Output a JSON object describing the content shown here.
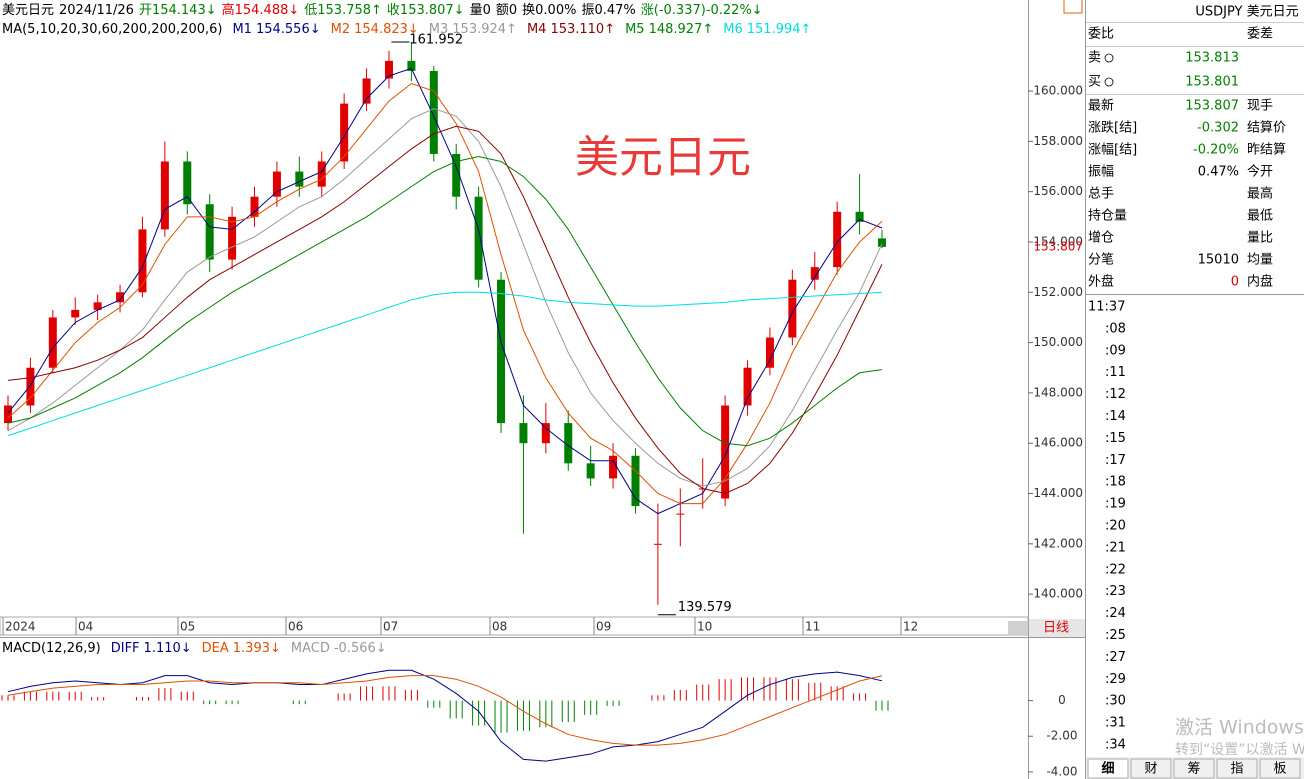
{
  "header": {
    "items": [
      {
        "text": "美元日元",
        "color": "#000000"
      },
      {
        "text": "2024/11/26",
        "color": "#000000"
      },
      {
        "text": "开154.143↓",
        "color": "#008000"
      },
      {
        "text": "高154.488↓",
        "color": "#e00000"
      },
      {
        "text": "低153.758↑",
        "color": "#008000"
      },
      {
        "text": "收153.807↓",
        "color": "#008000"
      },
      {
        "text": "量0",
        "color": "#000000"
      },
      {
        "text": "额0",
        "color": "#000000"
      },
      {
        "text": "换0.00%",
        "color": "#000000"
      },
      {
        "text": "振0.47%",
        "color": "#000000"
      },
      {
        "text": "涨(-0.337)-0.22%↓",
        "color": "#008000"
      }
    ]
  },
  "watermark_title": "美元日元",
  "chart_data": [
    {
      "type": "candlestick",
      "legend_title": "MA(5,10,20,30,60,200,200,200,6)",
      "up_color": "#e00000",
      "down_color": "#008000",
      "x_labels": [
        "2024",
        "04",
        "05",
        "06",
        "07",
        "08",
        "09",
        "10",
        "11",
        "12"
      ],
      "period_label": "日线",
      "open": [
        146.8,
        147.5,
        149.0,
        151.0,
        151.3,
        151.6,
        152.0,
        154.5,
        157.2,
        155.5,
        153.3,
        155.0,
        155.8,
        156.8,
        156.2,
        157.2,
        159.5,
        160.5,
        161.2,
        160.8,
        157.5,
        155.8,
        152.5,
        146.8,
        146.0,
        146.8,
        145.2,
        144.6,
        145.5,
        142.0,
        143.2,
        144.2,
        143.8,
        147.5,
        149.0,
        150.2,
        152.5,
        153.0,
        155.2,
        154.143
      ],
      "high": [
        147.9,
        149.4,
        151.3,
        151.8,
        151.9,
        152.3,
        155.0,
        158.0,
        157.6,
        155.9,
        155.4,
        156.2,
        157.2,
        157.4,
        157.6,
        159.9,
        160.9,
        161.6,
        161.952,
        161.0,
        157.9,
        156.2,
        152.8,
        147.9,
        147.6,
        147.3,
        145.9,
        146.0,
        145.8,
        143.6,
        144.2,
        145.4,
        147.9,
        149.3,
        150.6,
        152.9,
        153.6,
        155.6,
        156.7,
        154.488
      ],
      "low": [
        146.5,
        147.2,
        148.8,
        150.7,
        150.9,
        151.2,
        151.8,
        154.2,
        155.1,
        152.8,
        152.9,
        154.6,
        155.4,
        155.8,
        155.8,
        156.9,
        159.2,
        160.1,
        160.4,
        157.2,
        155.3,
        152.2,
        146.4,
        142.4,
        145.6,
        144.9,
        144.3,
        144.2,
        143.2,
        139.579,
        141.9,
        143.4,
        143.5,
        147.1,
        148.7,
        149.9,
        152.1,
        152.7,
        154.3,
        153.758
      ],
      "close": [
        147.5,
        149.0,
        151.0,
        151.3,
        151.6,
        152.0,
        154.5,
        157.2,
        155.5,
        153.3,
        155.0,
        155.8,
        156.8,
        156.2,
        157.2,
        159.5,
        160.5,
        161.2,
        160.8,
        157.5,
        155.8,
        152.5,
        146.8,
        146.0,
        146.8,
        145.2,
        144.6,
        145.5,
        143.5,
        142.0,
        143.2,
        144.2,
        147.5,
        149.0,
        150.2,
        152.5,
        153.0,
        155.2,
        154.8,
        153.807
      ],
      "ylim": [
        139.17,
        163.62
      ],
      "yticks": [
        {
          "value": 140,
          "label": "140.000"
        },
        {
          "value": 142,
          "label": "142.000"
        },
        {
          "value": 144,
          "label": "144.000"
        },
        {
          "value": 146,
          "label": "146.000"
        },
        {
          "value": 148,
          "label": "148.000"
        },
        {
          "value": 150,
          "label": "150.000"
        },
        {
          "value": 152,
          "label": "152.000"
        },
        {
          "value": 154,
          "label": "154.000"
        },
        {
          "value": 156,
          "label": "156.000"
        },
        {
          "value": 158,
          "label": "158.000"
        },
        {
          "value": 160,
          "label": "160.000"
        }
      ],
      "grid": false,
      "series": [
        {
          "name": "M1",
          "legend_value": "154.556↓",
          "color": "#00008b",
          "values": [
            147.2,
            148.3,
            149.8,
            150.8,
            151.3,
            151.7,
            153.0,
            155.3,
            155.8,
            154.6,
            154.5,
            155.2,
            156.0,
            156.4,
            156.8,
            158.2,
            159.7,
            160.6,
            160.9,
            159.0,
            157.0,
            154.5,
            150.0,
            147.5,
            146.6,
            145.9,
            145.3,
            145.3,
            143.8,
            143.2,
            143.6,
            144.0,
            145.5,
            147.8,
            149.3,
            151.2,
            152.6,
            154.0,
            154.9,
            154.556
          ]
        },
        {
          "name": "M2",
          "legend_value": "154.823↓",
          "color": "#e05000",
          "values": [
            147.0,
            147.8,
            148.9,
            150.0,
            150.8,
            151.4,
            152.3,
            153.9,
            155.0,
            155.0,
            154.8,
            155.0,
            155.6,
            156.1,
            156.5,
            157.4,
            158.5,
            159.6,
            160.3,
            160.0,
            158.7,
            156.8,
            153.5,
            150.5,
            148.6,
            147.2,
            146.2,
            145.7,
            144.9,
            144.0,
            143.6,
            143.6,
            144.6,
            146.0,
            147.6,
            149.6,
            151.2,
            152.8,
            154.0,
            154.823
          ]
        },
        {
          "name": "M3",
          "legend_value": "153.924↑",
          "color": "#999999",
          "values": [
            146.5,
            147.0,
            147.6,
            148.3,
            149.0,
            149.7,
            150.5,
            151.7,
            152.8,
            153.4,
            153.8,
            154.2,
            154.8,
            155.4,
            155.8,
            156.5,
            157.3,
            158.1,
            158.9,
            159.3,
            159.0,
            158.0,
            156.2,
            153.9,
            151.6,
            149.6,
            148.0,
            146.9,
            146.0,
            145.2,
            144.6,
            144.3,
            144.5,
            145.0,
            145.9,
            147.3,
            148.9,
            150.5,
            152.0,
            153.924
          ]
        },
        {
          "name": "M4",
          "legend_value": "153.110↑",
          "color": "#8b0000",
          "values": [
            148.5,
            148.6,
            148.8,
            149.0,
            149.3,
            149.7,
            150.2,
            151.0,
            151.8,
            152.5,
            153.0,
            153.5,
            154.0,
            154.5,
            155.0,
            155.6,
            156.3,
            157.0,
            157.7,
            158.3,
            158.6,
            158.4,
            157.5,
            155.8,
            153.8,
            151.8,
            150.0,
            148.4,
            147.0,
            145.8,
            144.8,
            144.2,
            144.0,
            144.4,
            145.2,
            146.4,
            147.9,
            149.5,
            151.3,
            153.11
          ]
        },
        {
          "name": "M5",
          "legend_value": "148.927↑",
          "color": "#008000",
          "values": [
            146.8,
            147.0,
            147.4,
            147.8,
            148.3,
            148.8,
            149.4,
            150.1,
            150.8,
            151.4,
            152.0,
            152.5,
            153.0,
            153.5,
            154.0,
            154.5,
            155.0,
            155.6,
            156.2,
            156.8,
            157.2,
            157.4,
            157.2,
            156.6,
            155.7,
            154.5,
            153.0,
            151.5,
            150.0,
            148.6,
            147.4,
            146.5,
            146.0,
            145.9,
            146.2,
            146.8,
            147.5,
            148.2,
            148.8,
            148.927
          ]
        },
        {
          "name": "M6",
          "legend_value": "151.994↑",
          "color": "#00dede",
          "values": [
            146.3,
            146.6,
            146.9,
            147.2,
            147.5,
            147.8,
            148.1,
            148.4,
            148.7,
            149.0,
            149.3,
            149.6,
            149.9,
            150.2,
            150.5,
            150.8,
            151.1,
            151.4,
            151.7,
            151.9,
            152.0,
            152.0,
            151.95,
            151.85,
            151.7,
            151.6,
            151.55,
            151.5,
            151.45,
            151.45,
            151.5,
            151.55,
            151.6,
            151.7,
            151.75,
            151.8,
            151.85,
            151.9,
            151.95,
            151.994
          ]
        }
      ]
    },
    {
      "type": "macd",
      "legend_title": "MACD(12,26,9)",
      "ylim": [
        -4.4,
        3.4
      ],
      "yticks": [
        0,
        {
          "value": -2,
          "label": "-2.00"
        },
        {
          "value": -4,
          "label": "-4.00"
        }
      ],
      "series": [
        {
          "name": "DIFF",
          "legend_value": "1.110↓",
          "color": "#00008b",
          "values": [
            0.5,
            0.8,
            1.0,
            1.1,
            1.0,
            0.9,
            1.0,
            1.4,
            1.4,
            1.0,
            0.9,
            1.0,
            1.0,
            0.9,
            0.9,
            1.2,
            1.5,
            1.7,
            1.7,
            1.2,
            0.4,
            -0.6,
            -2.3,
            -3.3,
            -3.4,
            -3.2,
            -3.0,
            -2.6,
            -2.5,
            -2.3,
            -1.9,
            -1.5,
            -0.6,
            0.3,
            0.9,
            1.3,
            1.5,
            1.6,
            1.4,
            1.11
          ]
        },
        {
          "name": "DEA",
          "legend_value": "1.393↓",
          "color": "#e05000",
          "values": [
            0.3,
            0.5,
            0.7,
            0.8,
            0.9,
            0.9,
            0.9,
            1.0,
            1.1,
            1.1,
            1.0,
            1.0,
            1.0,
            1.0,
            0.9,
            1.0,
            1.1,
            1.3,
            1.4,
            1.4,
            1.2,
            0.8,
            0.2,
            -0.6,
            -1.3,
            -1.9,
            -2.2,
            -2.4,
            -2.5,
            -2.5,
            -2.4,
            -2.2,
            -1.9,
            -1.4,
            -0.9,
            -0.4,
            0.1,
            0.6,
            1.1,
            1.393
          ]
        },
        {
          "name": "MACD",
          "legend_value": "-0.566↓",
          "color": "#999999",
          "values": [
            0.3,
            0.5,
            0.5,
            0.5,
            0.2,
            0,
            0.2,
            0.7,
            0.5,
            -0.2,
            -0.2,
            0,
            0,
            -0.2,
            0,
            0.4,
            0.8,
            0.8,
            0.6,
            -0.4,
            -1.0,
            -1.4,
            -1.8,
            -1.7,
            -1.5,
            -1.2,
            -0.8,
            -0.3,
            0,
            0.3,
            0.6,
            0.9,
            1.2,
            1.3,
            1.3,
            1.2,
            1.0,
            0.8,
            0.4,
            -0.566
          ]
        }
      ]
    }
  ],
  "quote": {
    "title": "USDJPY 美元日元",
    "top": [
      "委比",
      "委差"
    ],
    "sell": {
      "label": "卖",
      "value": "153.813"
    },
    "buy": {
      "label": "买",
      "value": "153.801"
    },
    "rows": [
      {
        "label": "最新",
        "value": "153.807",
        "color": "#008000",
        "label2": "现手"
      },
      {
        "label": "涨跌[结]",
        "value": "-0.302",
        "color": "#008000",
        "label2": "结算价"
      },
      {
        "label": "涨幅[结]",
        "value": "-0.20%",
        "color": "#008000",
        "label2": "昨结算"
      },
      {
        "label": "振幅",
        "value": "0.47%",
        "color": "#000000",
        "label2": "今开"
      },
      {
        "label": "总手",
        "label2": "最高"
      },
      {
        "label": "持仓量",
        "label2": "最低"
      },
      {
        "label": "增仓",
        "label2": "量比"
      },
      {
        "label": "分笔",
        "value": "15010",
        "color": "#000000",
        "label2": "均量"
      },
      {
        "label": "外盘",
        "value": "0",
        "color": "#e00000",
        "label2": "内盘"
      }
    ],
    "ticks": [
      "11:37",
      ":08",
      ":09",
      ":11",
      ":12",
      ":14",
      ":15",
      ":17",
      ":18",
      ":19",
      ":20",
      ":21",
      ":22",
      ":23",
      ":24",
      ":25",
      ":27",
      ":29",
      ":30",
      ":31",
      ":34"
    ]
  },
  "tabs": [
    "细",
    "财",
    "筹",
    "指",
    "板"
  ],
  "watermark": {
    "line1": "激活 Windows",
    "line2": "转到“设置”以激活 Windows。"
  }
}
